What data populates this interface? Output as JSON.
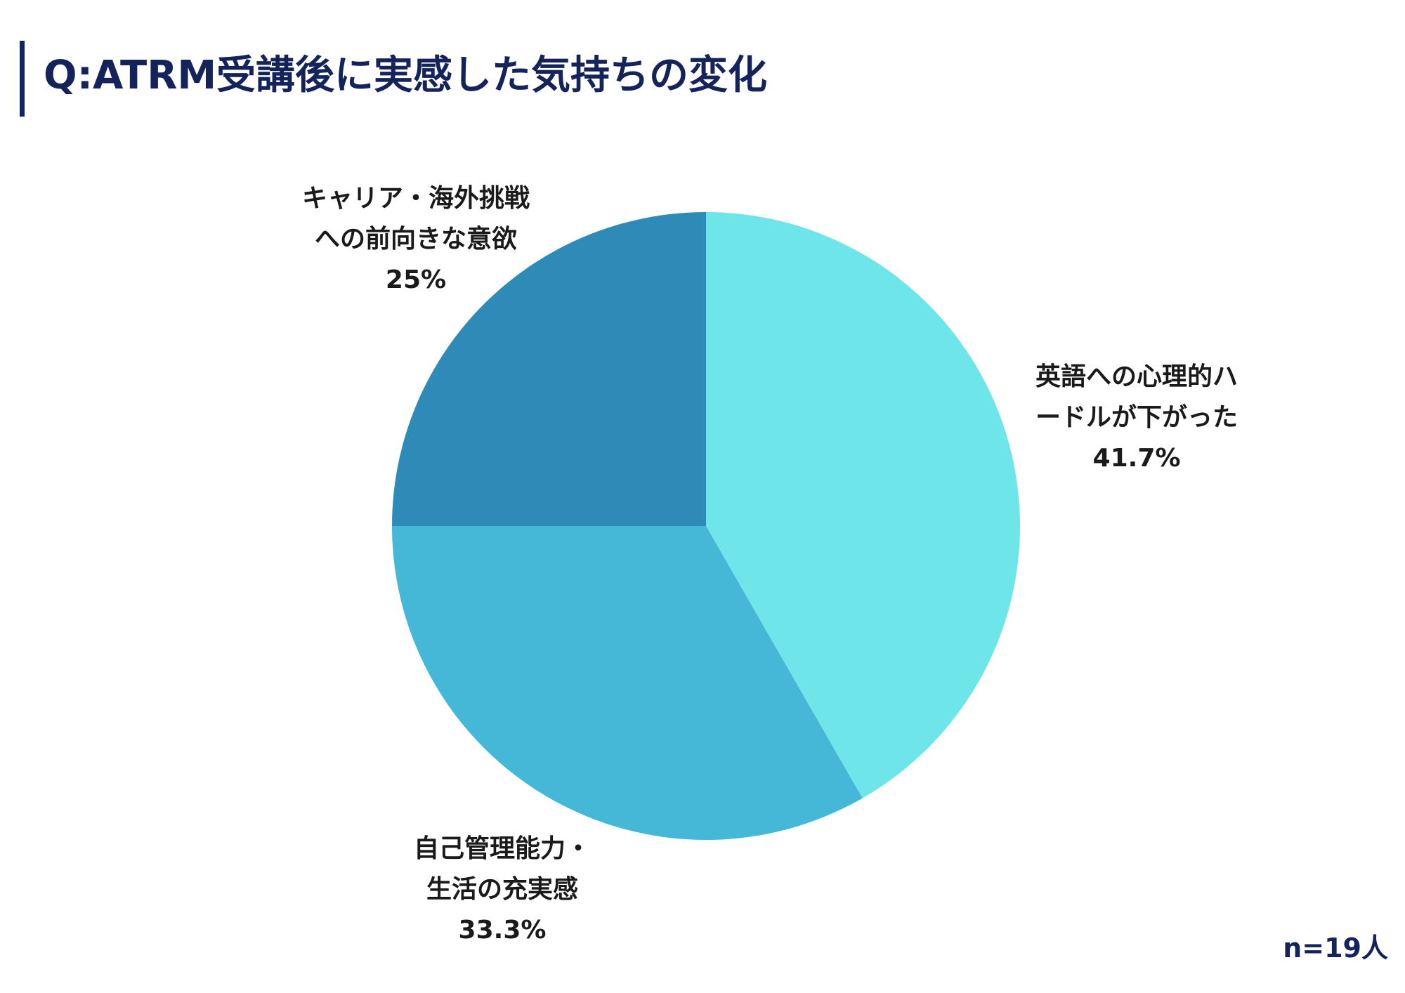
{
  "title": "Q:ATRM受講後に実感した気持ちの変化",
  "note": "n=19人",
  "chart_data": {
    "type": "pie",
    "title": "Q:ATRM受講後に実感した気持ちの変化",
    "start_angle_deg": 0,
    "direction": "clockwise",
    "slices": [
      {
        "label_lines": [
          "英語への心理的ハ",
          "ードルが下がった"
        ],
        "value": 41.7,
        "value_label": "41.7%",
        "color": "#6ee5e8"
      },
      {
        "label_lines": [
          "自己管理能力・",
          "生活の充実感"
        ],
        "value": 33.3,
        "value_label": "33.3%",
        "color": "#44b8d6"
      },
      {
        "label_lines": [
          "キャリア・海外挑戦",
          "への前向きな意欲"
        ],
        "value": 25,
        "value_label": "25%",
        "color": "#2e8bb8"
      }
    ]
  }
}
